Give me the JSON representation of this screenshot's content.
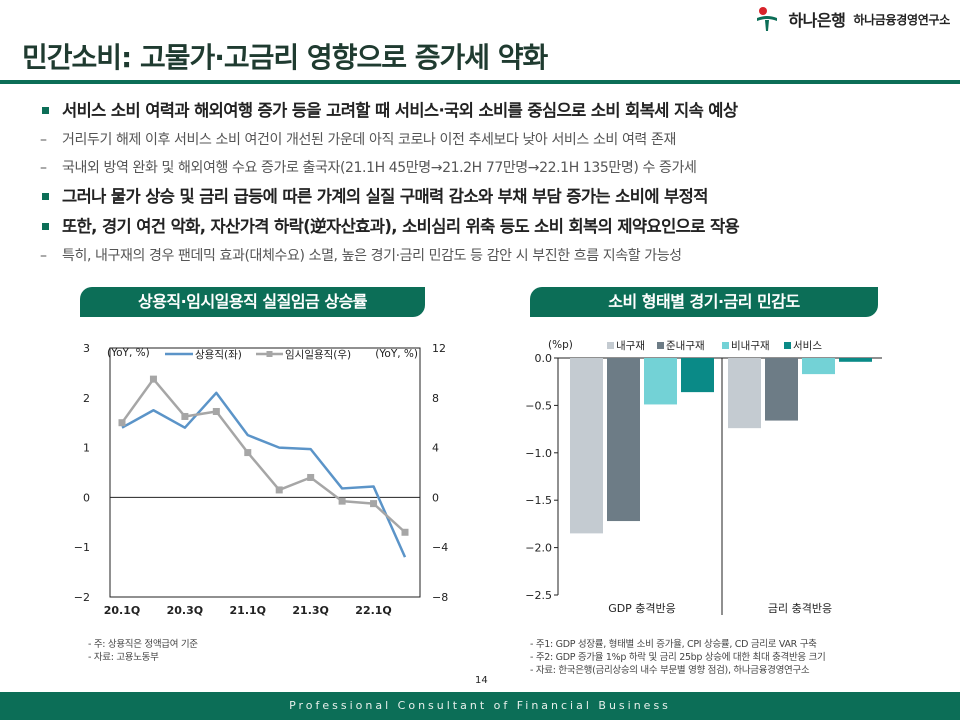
{
  "header": {
    "bank_name": "하나은행",
    "institute_name": "하나금융경영연구소",
    "title": "민간소비: 고물가·고금리 영향으로 증가세 약화"
  },
  "bullets": [
    {
      "level": 1,
      "text": "서비스 소비 여력과 해외여행 증가 등을 고려할 때 서비스·국외 소비를 중심으로 소비 회복세 지속 예상"
    },
    {
      "level": 2,
      "text": "거리두기 해제 이후 서비스 소비 여건이 개선된 가운데 아직 코로나 이전 추세보다 낮아 서비스 소비 여력 존재"
    },
    {
      "level": 2,
      "text": "국내외 방역 완화 및 해외여행 수요 증가로 출국자(21.1H 45만명→21.2H 77만명→22.1H 135만명) 수 증가세"
    },
    {
      "level": 1,
      "text": "그러나 물가 상승 및 금리 급등에 따른 가계의 실질 구매력 감소와 부채 부담 증가는 소비에 부정적"
    },
    {
      "level": 1,
      "text": "또한, 경기 여건 악화, 자산가격 하락(逆자산효과), 소비심리 위축 등도 소비 회복의 제약요인으로 작용"
    },
    {
      "level": 2,
      "text": "특히, 내구재의 경우 팬데믹 효과(대체수요) 소멸, 높은 경기·금리 민감도 등 감안 시 부진한 흐름 지속할 가능성"
    }
  ],
  "chart_data": [
    {
      "type": "line",
      "title": "상용직·임시일용직 실질임금 상승률",
      "ylabel_left": "(YoY, %)",
      "ylabel_right": "(YoY, %)",
      "ylim_left": [
        -2,
        3
      ],
      "ylim_right": [
        -8,
        12
      ],
      "yticks_left": [
        "3",
        "2",
        "1",
        "0",
        "−1",
        "−2"
      ],
      "yticks_right": [
        "12",
        "8",
        "4",
        "0",
        "−4",
        "−8"
      ],
      "xtick_labels": [
        "20.1Q",
        "20.3Q",
        "21.1Q",
        "21.3Q",
        "22.1Q"
      ],
      "n_points": 10,
      "series": [
        {
          "name": "상용직(좌)",
          "axis": "left",
          "color": "#5b94c8",
          "values": [
            1.4,
            1.75,
            1.4,
            2.1,
            1.25,
            1.0,
            0.97,
            0.18,
            0.22,
            -1.2
          ]
        },
        {
          "name": "임시일용직(우)",
          "axis": "right",
          "color": "#a6a6a6",
          "values": [
            6.0,
            9.5,
            6.5,
            6.9,
            3.6,
            0.6,
            1.6,
            -0.3,
            -0.5,
            -2.8
          ]
        }
      ],
      "notes": [
        "- 주: 상용직은 정액급여 기준",
        "- 자료: 고용노동부"
      ]
    },
    {
      "type": "bar",
      "title": "소비 형태별 경기·금리 민감도",
      "ylabel": "(%p)",
      "ylim": [
        -2.5,
        0.0
      ],
      "yticks": [
        "0.0",
        "−0.5",
        "−1.0",
        "−1.5",
        "−2.0",
        "−2.5"
      ],
      "categories": [
        "GDP 충격반응",
        "금리 충격반응"
      ],
      "series": [
        {
          "name": "내구재",
          "color": "#c4cbd1",
          "values": [
            -1.85,
            -0.74
          ]
        },
        {
          "name": "준내구재",
          "color": "#6d7c86",
          "values": [
            -1.72,
            -0.66
          ]
        },
        {
          "name": "비내구재",
          "color": "#73d2d6",
          "values": [
            -0.49,
            -0.17
          ]
        },
        {
          "name": "서비스",
          "color": "#0a8a87",
          "values": [
            -0.36,
            -0.04
          ]
        }
      ],
      "notes": [
        "- 주1: GDP 성장률, 형태별 소비 증가율, CPI 상승률, CD 금리로 VAR 구축",
        "- 주2: GDP 증가율 1%p 하락 및 금리 25bp 상승에 대한 최대 충격반응 크기",
        "- 자료: 한국은행(금리상승의 내수 부문별 영향 점검), 하나금융경영연구소"
      ]
    }
  ],
  "page_number": "14",
  "footer": "Professional Consultant of Financial Business"
}
